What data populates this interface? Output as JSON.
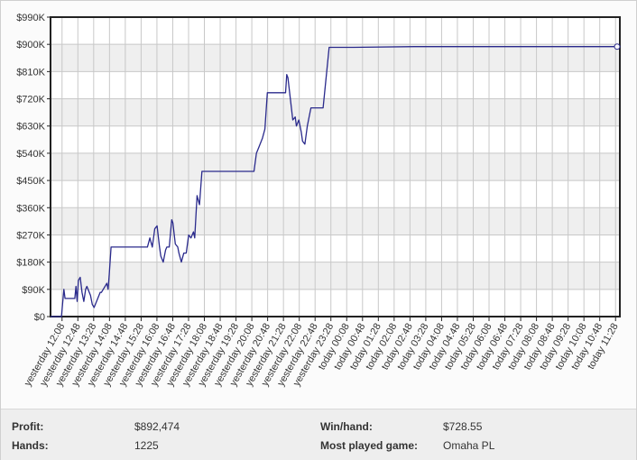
{
  "chart_data": {
    "type": "line",
    "y_ticks": [
      "$0",
      "$90K",
      "$180K",
      "$270K",
      "$360K",
      "$450K",
      "$540K",
      "$630K",
      "$720K",
      "$810K",
      "$900K",
      "$990K"
    ],
    "ylim": [
      0,
      990000
    ],
    "x_tick_labels": [
      "yesterday 12:08",
      "yesterday 12:48",
      "yesterday 13:28",
      "yesterday 14:08",
      "yesterday 14:48",
      "yesterday 15:28",
      "yesterday 16:08",
      "yesterday 16:48",
      "yesterday 17:28",
      "yesterday 18:08",
      "yesterday 18:48",
      "yesterday 19:28",
      "yesterday 20:08",
      "yesterday 20:48",
      "yesterday 21:28",
      "yesterday 22:08",
      "yesterday 22:48",
      "yesterday 23:28",
      "today 00:08",
      "today 00:48",
      "today 01:28",
      "today 02:08",
      "today 02:48",
      "today 03:28",
      "today 04:08",
      "today 04:48",
      "today 05:28",
      "today 06:08",
      "today 06:48",
      "today 07:28",
      "today 08:08",
      "today 08:48",
      "today 09:28",
      "today 10:08",
      "today 10:48",
      "today 11:28"
    ],
    "x": [
      0,
      0.9,
      1.1,
      1.2,
      1.35,
      1.5,
      1.75,
      1.9,
      2.0,
      2.1,
      2.2,
      2.3,
      2.45,
      2.6,
      2.75,
      2.9,
      3.0,
      3.1,
      3.2,
      3.3,
      3.45,
      3.6,
      3.8,
      4.0,
      4.1,
      4.2,
      4.35,
      4.5,
      4.65,
      4.75,
      4.85,
      5.0,
      5.2,
      5.4,
      5.6,
      5.75,
      5.9,
      6.0,
      6.5,
      7.0,
      7.5,
      8.0,
      8.2,
      8.4,
      8.6,
      8.8,
      9.0,
      9.1,
      9.3,
      9.5,
      9.6,
      9.8,
      10.0,
      10.1,
      10.3,
      10.5,
      10.6,
      10.8,
      11.0,
      11.2,
      11.4,
      11.6,
      11.8,
      11.9,
      12.1,
      12.3,
      12.5,
      12.7,
      12.85,
      13.0,
      13.2,
      13.4,
      13.6,
      13.8,
      14.0,
      15.0,
      16.0,
      16.8,
      17.0,
      17.2,
      17.5,
      17.7,
      17.9,
      18.0,
      18.5,
      19.0,
      19.2,
      19.4,
      19.5,
      19.6,
      19.8,
      20.0,
      20.2,
      20.3,
      20.5,
      20.7,
      20.8,
      21.0,
      21.2,
      21.5,
      21.8,
      22.0,
      22.5,
      23.0,
      23.2,
      23.5,
      24.0,
      25.0,
      30.0,
      35.0,
      40.0,
      45.0,
      47.0
    ],
    "y": [
      0,
      0,
      90000,
      60000,
      60000,
      60000,
      60000,
      60000,
      60000,
      100000,
      50000,
      120000,
      130000,
      80000,
      50000,
      90000,
      100000,
      90000,
      80000,
      70000,
      40000,
      30000,
      50000,
      70000,
      80000,
      80000,
      90000,
      100000,
      110000,
      90000,
      140000,
      230000,
      230000,
      230000,
      230000,
      230000,
      230000,
      230000,
      230000,
      230000,
      230000,
      230000,
      260000,
      230000,
      290000,
      300000,
      230000,
      200000,
      180000,
      220000,
      230000,
      230000,
      320000,
      310000,
      240000,
      230000,
      210000,
      180000,
      210000,
      210000,
      270000,
      260000,
      280000,
      260000,
      400000,
      370000,
      480000,
      480000,
      480000,
      480000,
      480000,
      480000,
      480000,
      480000,
      480000,
      480000,
      480000,
      480000,
      540000,
      560000,
      590000,
      620000,
      740000,
      740000,
      740000,
      740000,
      740000,
      740000,
      800000,
      790000,
      720000,
      650000,
      660000,
      630000,
      650000,
      610000,
      580000,
      570000,
      630000,
      690000,
      690000,
      690000,
      690000,
      890000,
      890000,
      890000,
      890000,
      890000,
      892474,
      892474,
      892474,
      892474,
      892474
    ],
    "xlim": [
      0,
      47
    ],
    "grid": true
  },
  "colors": {
    "line": "#2a2a8c",
    "grid": "#c8c8c8",
    "band": "#efefef",
    "axis": "#222222"
  },
  "stats": {
    "profit_label": "Profit:",
    "profit_value": "$892,474",
    "hands_label": "Hands:",
    "hands_value": "1225",
    "winhand_label": "Win/hand:",
    "winhand_value": "$728.55",
    "game_label": "Most played game:",
    "game_value": "Omaha PL"
  }
}
